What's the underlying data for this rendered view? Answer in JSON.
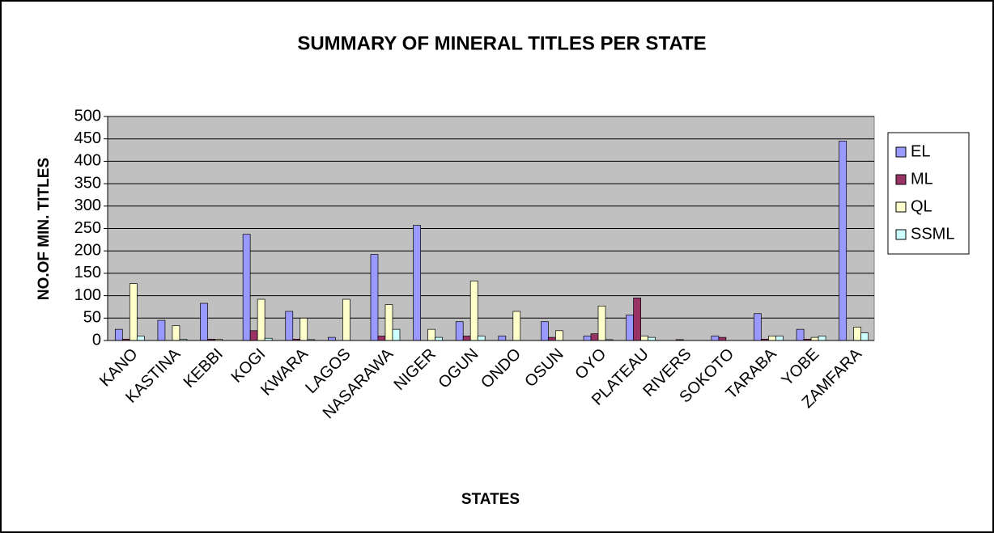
{
  "chart_data": {
    "type": "bar",
    "title": "SUMMARY OF MINERAL TITLES PER STATE",
    "x_label": "STATES",
    "y_label": "NO.OF MIN. TITLES",
    "categories": [
      "KANO",
      "KASTINA",
      "KEBBI",
      "KOGI",
      "KWARA",
      "LAGOS",
      "NASARAWA",
      "NIGER",
      "OGUN",
      "ONDO",
      "OSUN",
      "OYO",
      "PLATEAU",
      "RIVERS",
      "SOKOTO",
      "TARABA",
      "YOBE",
      "ZAMFARA"
    ],
    "series": [
      {
        "name": "EL",
        "color": "#9999ff",
        "values": [
          25,
          45,
          83,
          237,
          65,
          7,
          192,
          257,
          42,
          10,
          42,
          10,
          57,
          0,
          10,
          60,
          25,
          445
        ]
      },
      {
        "name": "ML",
        "color": "#993366",
        "values": [
          3,
          0,
          3,
          22,
          3,
          0,
          10,
          0,
          10,
          0,
          7,
          15,
          95,
          2,
          7,
          3,
          3,
          0
        ]
      },
      {
        "name": "QL",
        "color": "#ffffcc",
        "values": [
          127,
          33,
          3,
          92,
          50,
          92,
          80,
          25,
          133,
          65,
          22,
          77,
          10,
          0,
          0,
          10,
          7,
          30
        ]
      },
      {
        "name": "SSML",
        "color": "#ccffff",
        "values": [
          10,
          3,
          0,
          5,
          2,
          0,
          25,
          7,
          10,
          0,
          0,
          2,
          7,
          0,
          0,
          10,
          10,
          17
        ]
      }
    ],
    "ylim": [
      0,
      500
    ],
    "yticks": [
      0,
      50,
      100,
      150,
      200,
      250,
      300,
      350,
      400,
      450,
      500
    ],
    "grid": true,
    "legend": "right",
    "plot_background": "#c0c0c0"
  }
}
